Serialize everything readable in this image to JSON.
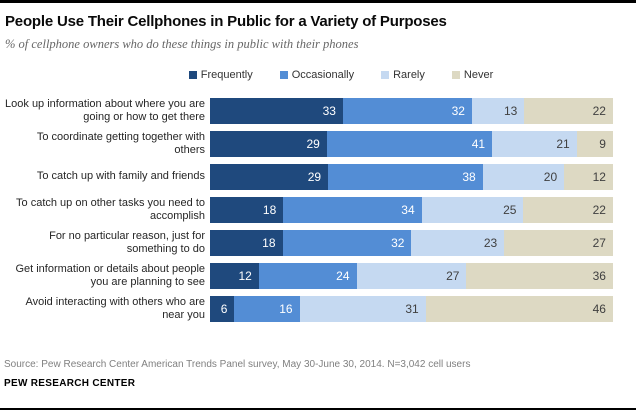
{
  "header": {
    "title": "People Use Their Cellphones in Public for a Variety of Purposes",
    "subtitle": "% of cellphone owners who do these things in public with their phones"
  },
  "legend": [
    {
      "label": "Frequently",
      "color": "#1F497D"
    },
    {
      "label": "Occasionally",
      "color": "#538DD5"
    },
    {
      "label": "Rarely",
      "color": "#C5D9F1"
    },
    {
      "label": "Never",
      "color": "#DDD9C3"
    }
  ],
  "chart_data": {
    "type": "bar",
    "orientation": "horizontal",
    "stacked": true,
    "unit": "%",
    "title": "People Use Their Cellphones in Public for a Variety of Purposes",
    "subtitle": "% of cellphone owners who do these things in public with their phones",
    "categories": [
      "Look up information about where you are going or how to get there",
      "To coordinate getting together with others",
      "To catch up with family and friends",
      "To catch up on other tasks you need to accomplish",
      "For no particular reason, just for something to do",
      "Get information or details about people you are planning to see",
      "Avoid interacting with others who are near you"
    ],
    "series": [
      {
        "name": "Frequently",
        "color": "#1F497D",
        "value_text_color": "#FFFFFF",
        "values": [
          33,
          29,
          29,
          18,
          18,
          12,
          6
        ]
      },
      {
        "name": "Occasionally",
        "color": "#538DD5",
        "value_text_color": "#FFFFFF",
        "values": [
          32,
          41,
          38,
          34,
          32,
          24,
          16
        ]
      },
      {
        "name": "Rarely",
        "color": "#C5D9F1",
        "value_text_color": "#404040",
        "values": [
          13,
          21,
          20,
          25,
          23,
          27,
          31
        ]
      },
      {
        "name": "Never",
        "color": "#DDD9C3",
        "value_text_color": "#404040",
        "values": [
          22,
          9,
          12,
          22,
          27,
          36,
          46
        ]
      }
    ],
    "xlim": [
      0,
      100
    ],
    "legend_position": "top",
    "value_labels": "inside-right",
    "grid": false
  },
  "footer": {
    "source": "Source: Pew Research Center American Trends Panel survey, May 30-June 30, 2014. N=3,042 cell users",
    "brand": "PEW RESEARCH CENTER"
  }
}
